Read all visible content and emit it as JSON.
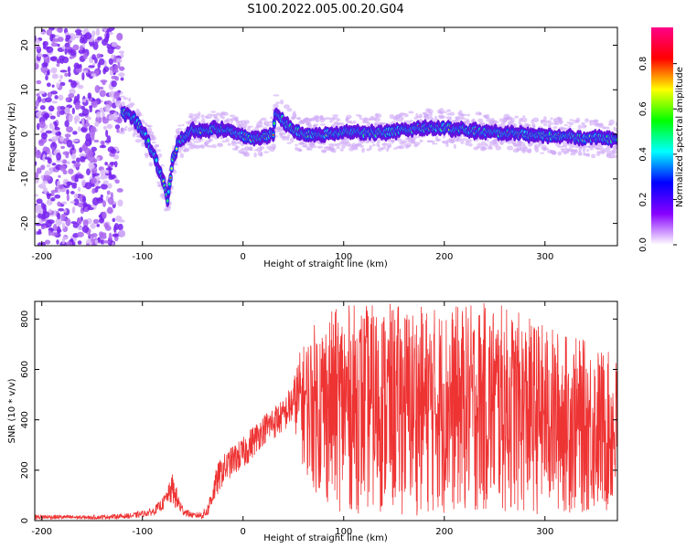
{
  "title": "S100.2022.005.00.20.G04",
  "chart_data": [
    {
      "type": "heatmap",
      "title": "S100.2022.005.00.20.G04",
      "xlabel": "Height of straight line (km)",
      "ylabel": "Frequency (Hz)",
      "xlim": [
        -207,
        372
      ],
      "ylim": [
        -25,
        24
      ],
      "xticks": [
        "-200",
        "-100",
        "0",
        "100",
        "200",
        "300"
      ],
      "xtick_values": [
        -200,
        -100,
        0,
        100,
        200,
        300
      ],
      "yticks": [
        "-20",
        "-10",
        "0",
        "10",
        "20"
      ],
      "ytick_values": [
        -20,
        -10,
        0,
        10,
        20
      ],
      "noise_region_x": [
        -207,
        -120
      ],
      "ridge": {
        "x": [
          -120,
          -110,
          -100,
          -90,
          -80,
          -75,
          -70,
          -65,
          -60,
          -50,
          -40,
          -30,
          -20,
          -10,
          0,
          10,
          20,
          30,
          32,
          40,
          50,
          60,
          80,
          100,
          120,
          140,
          160,
          180,
          200,
          220,
          240,
          260,
          280,
          300,
          320,
          340,
          360,
          372
        ],
        "y": [
          5,
          4,
          1,
          -4,
          -10,
          -15,
          -6,
          -2,
          -1,
          1,
          0.8,
          1.2,
          1,
          0.6,
          -0.5,
          -1,
          -0.5,
          0,
          5,
          3,
          1,
          0,
          0,
          0.5,
          0.3,
          0.4,
          1,
          1.5,
          1.5,
          1,
          0.5,
          0.3,
          0,
          -0.3,
          -0.5,
          -0.8,
          -1,
          -1
        ]
      },
      "colorbar": {
        "label": "Normalized spectral amplitude",
        "ticks": [
          "0.0",
          "0.2",
          "0.4",
          "0.6",
          "0.8"
        ],
        "tick_values": [
          0,
          0.2,
          0.4,
          0.6,
          0.8
        ],
        "range": [
          0,
          0.96
        ],
        "colors": [
          "#ffffff",
          "#8800ff",
          "#0000ff",
          "#00ffff",
          "#00ff00",
          "#ffff00",
          "#ff0000",
          "#ff0088"
        ]
      }
    },
    {
      "type": "line",
      "xlabel": "Height of straight line (km)",
      "ylabel": "SNR (10 * v/v)",
      "xlim": [
        -207,
        372
      ],
      "ylim": [
        0,
        870
      ],
      "xticks": [
        "-200",
        "-100",
        "0",
        "100",
        "200",
        "300"
      ],
      "xtick_values": [
        -200,
        -100,
        0,
        100,
        200,
        300
      ],
      "yticks": [
        "0",
        "200",
        "400",
        "600",
        "800"
      ],
      "ytick_values": [
        0,
        200,
        400,
        600,
        800
      ],
      "color": "#ee3333",
      "envelope": {
        "x": [
          -207,
          -150,
          -110,
          -90,
          -80,
          -75,
          -70,
          -65,
          -60,
          -50,
          -40,
          -35,
          -30,
          -25,
          -20,
          -10,
          0,
          10,
          20,
          30,
          40,
          50,
          55,
          60,
          70,
          80,
          100,
          150,
          200,
          250,
          300,
          350,
          372
        ],
        "low": [
          5,
          5,
          8,
          20,
          40,
          70,
          60,
          30,
          20,
          10,
          5,
          15,
          60,
          100,
          140,
          180,
          200,
          250,
          300,
          320,
          350,
          380,
          300,
          200,
          120,
          60,
          30,
          20,
          20,
          20,
          20,
          20,
          20
        ],
        "high": [
          25,
          20,
          30,
          50,
          90,
          130,
          190,
          120,
          60,
          30,
          40,
          70,
          160,
          230,
          260,
          300,
          330,
          380,
          420,
          460,
          480,
          560,
          660,
          700,
          780,
          820,
          860,
          860,
          850,
          870,
          780,
          700,
          650
        ]
      }
    }
  ]
}
